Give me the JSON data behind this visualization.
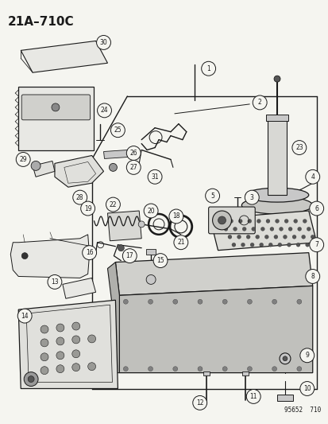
{
  "title": "21A–710C",
  "watermark": "95652  710",
  "bg_color": "#f5f5f0",
  "fig_width": 4.14,
  "fig_height": 5.33,
  "dpi": 100,
  "line_color": "#1a1a1a",
  "light_gray": "#c8c8c8",
  "mid_gray": "#999999",
  "dark_gray": "#555555"
}
